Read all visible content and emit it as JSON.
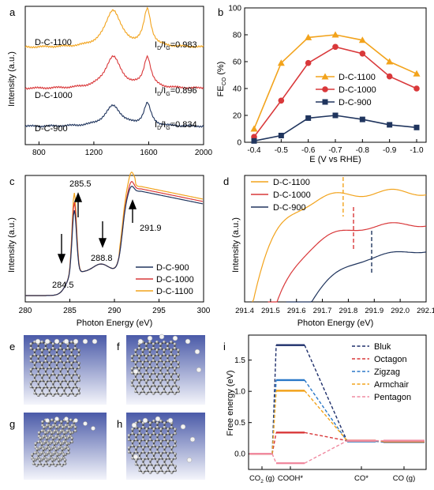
{
  "chart_data": [
    {
      "panel": "a",
      "type": "line",
      "ylabel": "Intensity (a.u.)",
      "xlim": [
        700,
        2000
      ],
      "xticks": [
        "800",
        "1200",
        "1600",
        "2000"
      ],
      "series": [
        {
          "name": "D-C-1100",
          "color": "#f2a31c",
          "ratio_label": "I_D/I_G=0.983"
        },
        {
          "name": "D-C-1000",
          "color": "#d9383a",
          "ratio_label": "I_D/I_G=0.896"
        },
        {
          "name": "D-C-900",
          "color": "#20355e",
          "ratio_label": "I_D/I_G=0.834"
        }
      ],
      "peaks": {
        "D": 1340,
        "G": 1590
      }
    },
    {
      "panel": "b",
      "type": "line",
      "ylabel_main": "FE",
      "ylabel_sub": "CO",
      "ylabel_unit": " (%)",
      "xlabel": "E (V vs RHE)",
      "x": [
        -0.4,
        -0.5,
        -0.6,
        -0.7,
        -0.8,
        -0.9,
        -1.0
      ],
      "xticks": [
        "-0.4",
        "-0.5",
        "-0.6",
        "-0.7",
        "-0.8",
        "-0.9",
        "-1.0"
      ],
      "ylim": [
        0,
        100
      ],
      "yticks": [
        "0",
        "20",
        "40",
        "60",
        "80",
        "100"
      ],
      "legend": "center-right",
      "series": [
        {
          "name": "D-C-1100",
          "marker": "triangle",
          "color": "#f2a31c",
          "values": [
            10,
            59,
            78,
            80,
            76,
            60,
            51
          ]
        },
        {
          "name": "D-C-1000",
          "marker": "circle",
          "color": "#d9383a",
          "values": [
            4,
            31,
            59,
            71,
            66,
            49,
            40
          ]
        },
        {
          "name": "D-C-900",
          "marker": "square",
          "color": "#20355e",
          "values": [
            1,
            5,
            18,
            20,
            17,
            13,
            11
          ]
        }
      ]
    },
    {
      "panel": "c",
      "type": "line",
      "ylabel": "Intensity (a.u.)",
      "xlabel": "Photon Energy (eV)",
      "xlim": [
        280,
        300
      ],
      "xticks": [
        "280",
        "285",
        "290",
        "295",
        "300"
      ],
      "annotations": [
        "285.5",
        "291.9",
        "288.8",
        "284.5"
      ],
      "legend": "bottom-right",
      "series": [
        {
          "name": "D-C-900",
          "color": "#20355e"
        },
        {
          "name": "D-C-1000",
          "color": "#d9383a"
        },
        {
          "name": "D-C-1100",
          "color": "#f2a31c"
        }
      ]
    },
    {
      "panel": "d",
      "type": "line",
      "ylabel": "Intensity (a.u.)",
      "xlabel": "Photon Energy (eV)",
      "xlim": [
        291.4,
        292.1
      ],
      "xticks": [
        "291.4",
        "291.5",
        "291.6",
        "291.7",
        "291.8",
        "291.9",
        "292.0",
        "292.1"
      ],
      "legend": "top-left",
      "series": [
        {
          "name": "D-C-1100",
          "color": "#f2a31c",
          "peak_marker": 291.78
        },
        {
          "name": "D-C-1000",
          "color": "#d9383a",
          "peak_marker": 291.82
        },
        {
          "name": "D-C-900",
          "color": "#20355e",
          "peak_marker": 291.89
        }
      ]
    },
    {
      "panel": "i",
      "type": "line",
      "ylabel": "Free energy (eV)",
      "categories": [
        "CO2 (g)",
        "COOH*",
        "CO*",
        "CO (g)"
      ],
      "xtick_main": [
        "CO",
        "COOH*",
        "CO*",
        "CO (g)"
      ],
      "xtick_sub": [
        "2",
        "",
        "",
        ""
      ],
      "xtick_suffix": [
        " (g)",
        "",
        "",
        ""
      ],
      "ylim": [
        -0.25,
        1.9
      ],
      "yticks": [
        "0.0",
        "0.5",
        "1.0",
        "1.5"
      ],
      "legend": "top-right",
      "series": [
        {
          "name": "Bluk",
          "color": "#1e2f6b",
          "values": [
            0,
            1.74,
            0.2,
            0.19
          ]
        },
        {
          "name": "Octagon",
          "color": "#d9383a",
          "values": [
            0,
            0.34,
            0.21,
            0.2
          ]
        },
        {
          "name": "Zigzag",
          "color": "#2b79c8",
          "values": [
            0,
            1.18,
            0.2,
            0.2
          ]
        },
        {
          "name": "Armchair",
          "color": "#f2a31c",
          "values": [
            0,
            1.01,
            0.21,
            0.2
          ]
        },
        {
          "name": "Pentagon",
          "color": "#f08aa0",
          "values": [
            0,
            -0.15,
            0.21,
            0.21
          ]
        }
      ]
    }
  ],
  "labels": {
    "a": "a",
    "b": "b",
    "c": "c",
    "d": "d",
    "e": "e",
    "f": "f",
    "g": "g",
    "h": "h",
    "i": "i"
  },
  "ratio_I": "I",
  "ratio_D": "D",
  "ratio_slash": "/I",
  "ratio_G": "G",
  "ratio_vals": [
    "=0.983",
    "=0.896",
    "=0.834"
  ],
  "structures": [
    {
      "panel": "e",
      "name": "zigzag-edge-graphene-model"
    },
    {
      "panel": "f",
      "name": "pentagon-defect-graphene-model"
    },
    {
      "panel": "g",
      "name": "tilted-graphene-ribbon-model"
    },
    {
      "panel": "h",
      "name": "curved-defect-graphene-model"
    }
  ]
}
